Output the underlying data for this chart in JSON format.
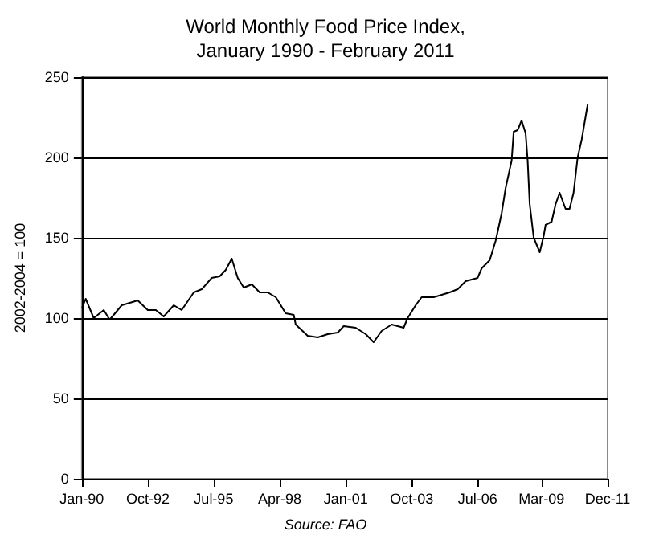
{
  "chart_data": {
    "type": "line",
    "title": "World Monthly Food Price Index,\nJanuary 1990 - February 2011",
    "ylabel": "2002-2004 = 100",
    "annotations": [
      "Source: FAO"
    ],
    "x": [
      "1990-01",
      "1990-03",
      "1990-07",
      "1990-12",
      "1991-03",
      "1991-09",
      "1992-05",
      "1992-10",
      "1993-02",
      "1993-06",
      "1993-11",
      "1994-03",
      "1994-09",
      "1995-01",
      "1995-06",
      "1995-10",
      "1996-01",
      "1996-04",
      "1996-07",
      "1996-10",
      "1997-02",
      "1997-06",
      "1997-10",
      "1998-02",
      "1998-07",
      "1998-11",
      "1998-12",
      "1999-06",
      "1999-11",
      "2000-04",
      "2000-09",
      "2000-12",
      "2001-06",
      "2001-11",
      "2002-03",
      "2002-07",
      "2002-12",
      "2003-06",
      "2003-08",
      "2003-12",
      "2004-03",
      "2004-09",
      "2005-05",
      "2005-09",
      "2006-01",
      "2006-07",
      "2006-09",
      "2007-01",
      "2007-04",
      "2007-07",
      "2007-09",
      "2007-12",
      "2008-01",
      "2008-03",
      "2008-05",
      "2008-07",
      "2008-08",
      "2008-09",
      "2008-11",
      "2009-02",
      "2009-04",
      "2009-05",
      "2009-08",
      "2009-10",
      "2009-12",
      "2010-03",
      "2010-05",
      "2010-07",
      "2010-09",
      "2010-11",
      "2011-02"
    ],
    "series": [
      {
        "color": "#000000",
        "values": [
          106,
          112,
          100,
          105,
          99,
          108,
          111,
          105,
          105,
          101,
          108,
          105,
          116,
          118,
          125,
          126,
          130,
          137,
          125,
          119,
          121,
          116,
          116,
          113,
          103,
          102,
          96,
          89,
          88,
          90,
          91,
          95,
          94,
          90,
          85,
          92,
          96,
          94,
          100,
          108,
          113,
          113,
          116,
          118,
          123,
          125,
          131,
          136,
          148,
          165,
          181,
          198,
          216,
          217,
          223,
          215,
          198,
          171,
          150,
          141,
          151,
          158,
          160,
          171,
          178,
          168,
          168,
          178,
          200,
          211,
          233
        ]
      }
    ],
    "xlim": [
      "1990-01",
      "2011-12"
    ],
    "xticks": [
      {
        "value": "1990-01",
        "label": "Jan-90"
      },
      {
        "value": "1992-10",
        "label": "Oct-92"
      },
      {
        "value": "1995-07",
        "label": "Jul-95"
      },
      {
        "value": "1998-04",
        "label": "Apr-98"
      },
      {
        "value": "2001-01",
        "label": "Jan-01"
      },
      {
        "value": "2003-10",
        "label": "Oct-03"
      },
      {
        "value": "2006-07",
        "label": "Jul-06"
      },
      {
        "value": "2009-03",
        "label": "Mar-09"
      },
      {
        "value": "2011-12",
        "label": "Dec-11"
      }
    ],
    "ylim": [
      0,
      250
    ],
    "yticks": [
      0,
      50,
      100,
      150,
      200,
      250
    ],
    "grid": "y",
    "marker": "none",
    "line_style": "solid"
  }
}
